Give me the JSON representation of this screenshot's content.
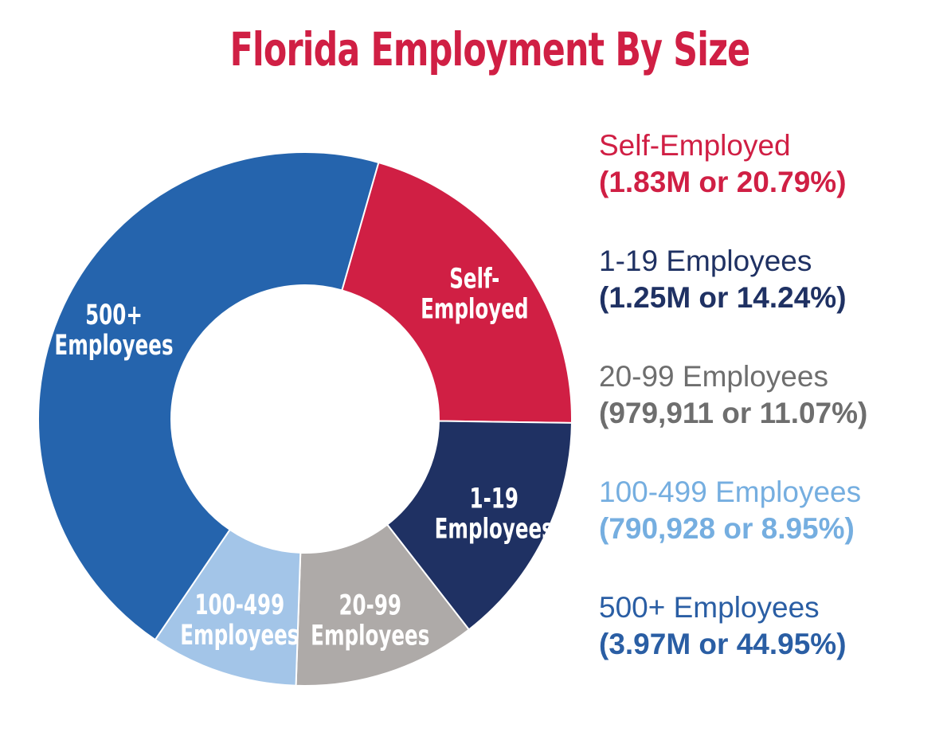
{
  "colors": {
    "title": "#d01f44",
    "background": "#ffffff",
    "slice_border": "#ffffff"
  },
  "chart_data": {
    "type": "pie",
    "donut": true,
    "title": "Florida Employment By Size",
    "start_angle_deg": -74,
    "legend_placement": "right",
    "slices": [
      {
        "label_lines": [
          "Self-",
          "Employed"
        ],
        "legend_name": "Self-Employed",
        "legend_value": "(1.83M or 20.79%)",
        "value": 1830000,
        "percent": 20.79,
        "color": "#d01f44",
        "legend_color": "#d01f44"
      },
      {
        "label_lines": [
          "1-19",
          "Employees"
        ],
        "legend_name": "1-19 Employees",
        "legend_value": "(1.25M or 14.24%)",
        "value": 1250000,
        "percent": 14.24,
        "color": "#1f3163",
        "legend_color": "#1f3163"
      },
      {
        "label_lines": [
          "20-99",
          "Employees"
        ],
        "legend_name": "20-99 Employees",
        "legend_value": "(979,911 or 11.07%)",
        "value": 979911,
        "percent": 11.07,
        "color": "#aeaaa8",
        "legend_color": "#6e6e6e"
      },
      {
        "label_lines": [
          "100-499",
          "Employees"
        ],
        "legend_name": "100-499 Employees",
        "legend_value": "(790,928 or 8.95%)",
        "value": 790928,
        "percent": 8.95,
        "color": "#a3c5e8",
        "legend_color": "#75aee0"
      },
      {
        "label_lines": [
          "500+",
          "Employees"
        ],
        "legend_name": "500+ Employees",
        "legend_value": "(3.97M or 44.95%)",
        "value": 3970000,
        "percent": 44.95,
        "color": "#2564ad",
        "legend_color": "#2a5ea4"
      }
    ]
  }
}
